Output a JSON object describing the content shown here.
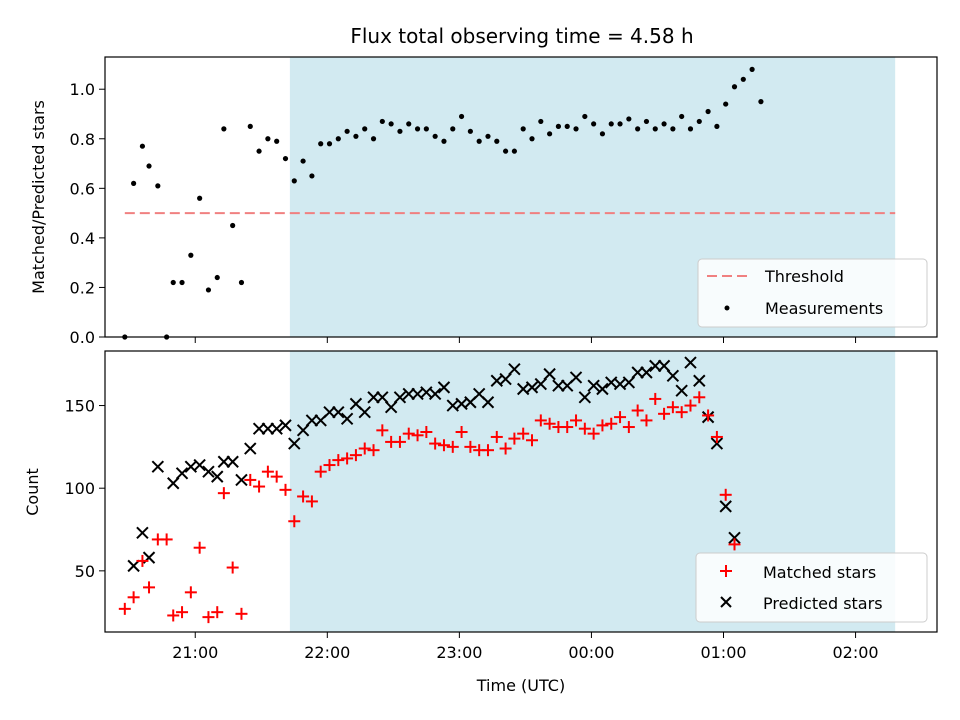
{
  "figure_title": "Flux total observing time = 4.58 h",
  "colors": {
    "observing_window": "#add8e6",
    "threshold": "#f08080",
    "measurements": "#000000",
    "matched": "#ff0000",
    "predicted": "#000000"
  },
  "chart_data": [
    {
      "type": "scatter",
      "title": "Flux total observing time = 4.58 h",
      "xlabel": "",
      "ylabel": "Matched/Predicted stars",
      "xlim": [
        "20:19",
        "02:37"
      ],
      "ylim": [
        0,
        1.13
      ],
      "yticks": [
        "0.0",
        "0.2",
        "0.4",
        "0.6",
        "0.8",
        "1.0"
      ],
      "shaded_window": [
        "21:43",
        "02:18"
      ],
      "legend_position": "lower-right",
      "threshold": {
        "name": "Threshold",
        "y": 0.5,
        "x_range": [
          "20:28",
          "02:18"
        ],
        "style": "dashed"
      },
      "series": [
        {
          "name": "Measurements",
          "marker": "dot",
          "points": [
            [
              "20:28",
              0.0
            ],
            [
              "20:32",
              0.62
            ],
            [
              "20:36",
              0.77
            ],
            [
              "20:39",
              0.69
            ],
            [
              "20:43",
              0.61
            ],
            [
              "20:47",
              0.0
            ],
            [
              "20:50",
              0.22
            ],
            [
              "20:54",
              0.22
            ],
            [
              "20:58",
              0.33
            ],
            [
              "21:02",
              0.56
            ],
            [
              "21:06",
              0.19
            ],
            [
              "21:10",
              0.24
            ],
            [
              "21:13",
              0.84
            ],
            [
              "21:17",
              0.45
            ],
            [
              "21:21",
              0.22
            ],
            [
              "21:25",
              0.85
            ],
            [
              "21:29",
              0.75
            ],
            [
              "21:33",
              0.8
            ],
            [
              "21:37",
              0.79
            ],
            [
              "21:41",
              0.72
            ],
            [
              "21:45",
              0.63
            ],
            [
              "21:49",
              0.71
            ],
            [
              "21:53",
              0.65
            ],
            [
              "21:57",
              0.78
            ],
            [
              "22:01",
              0.78
            ],
            [
              "22:05",
              0.8
            ],
            [
              "22:09",
              0.83
            ],
            [
              "22:13",
              0.81
            ],
            [
              "22:17",
              0.84
            ],
            [
              "22:21",
              0.8
            ],
            [
              "22:25",
              0.87
            ],
            [
              "22:29",
              0.86
            ],
            [
              "22:33",
              0.83
            ],
            [
              "22:37",
              0.86
            ],
            [
              "22:41",
              0.84
            ],
            [
              "22:45",
              0.84
            ],
            [
              "22:49",
              0.81
            ],
            [
              "22:53",
              0.79
            ],
            [
              "22:57",
              0.84
            ],
            [
              "23:01",
              0.89
            ],
            [
              "23:05",
              0.83
            ],
            [
              "23:09",
              0.79
            ],
            [
              "23:13",
              0.81
            ],
            [
              "23:17",
              0.79
            ],
            [
              "23:21",
              0.75
            ],
            [
              "23:25",
              0.75
            ],
            [
              "23:29",
              0.84
            ],
            [
              "23:33",
              0.8
            ],
            [
              "23:37",
              0.87
            ],
            [
              "23:41",
              0.82
            ],
            [
              "23:45",
              0.85
            ],
            [
              "23:49",
              0.85
            ],
            [
              "23:53",
              0.84
            ],
            [
              "23:57",
              0.89
            ],
            [
              "00:01",
              0.86
            ],
            [
              "00:05",
              0.82
            ],
            [
              "00:09",
              0.86
            ],
            [
              "00:13",
              0.86
            ],
            [
              "00:17",
              0.88
            ],
            [
              "00:21",
              0.84
            ],
            [
              "00:25",
              0.87
            ],
            [
              "00:29",
              0.84
            ],
            [
              "00:33",
              0.86
            ],
            [
              "00:37",
              0.84
            ],
            [
              "00:41",
              0.89
            ],
            [
              "00:45",
              0.84
            ],
            [
              "00:49",
              0.87
            ],
            [
              "00:53",
              0.91
            ],
            [
              "00:57",
              0.85
            ],
            [
              "01:01",
              0.94
            ],
            [
              "01:05",
              1.01
            ],
            [
              "01:09",
              1.04
            ],
            [
              "01:13",
              1.08
            ],
            [
              "01:17",
              0.95
            ]
          ]
        }
      ]
    },
    {
      "type": "scatter",
      "title": "",
      "xlabel": "Time (UTC)",
      "ylabel": "Count",
      "xlim": [
        "20:19",
        "02:37"
      ],
      "ylim": [
        13,
        183
      ],
      "yticks": [
        "50",
        "100",
        "150"
      ],
      "xticks": [
        "21:00",
        "22:00",
        "23:00",
        "00:00",
        "01:00",
        "02:00"
      ],
      "shaded_window": [
        "21:43",
        "02:18"
      ],
      "legend_position": "lower-right",
      "series": [
        {
          "name": "Matched stars",
          "marker": "plus",
          "points": [
            [
              "20:28",
              27
            ],
            [
              "20:32",
              34
            ],
            [
              "20:36",
              56
            ],
            [
              "20:39",
              40
            ],
            [
              "20:43",
              69
            ],
            [
              "20:47",
              69
            ],
            [
              "20:50",
              23
            ],
            [
              "20:54",
              25
            ],
            [
              "20:58",
              37
            ],
            [
              "21:02",
              64
            ],
            [
              "21:06",
              22
            ],
            [
              "21:10",
              25
            ],
            [
              "21:13",
              97
            ],
            [
              "21:17",
              52
            ],
            [
              "21:21",
              24
            ],
            [
              "21:25",
              105
            ],
            [
              "21:29",
              101
            ],
            [
              "21:33",
              110
            ],
            [
              "21:37",
              107
            ],
            [
              "21:41",
              99
            ],
            [
              "21:45",
              80
            ],
            [
              "21:49",
              95
            ],
            [
              "21:53",
              92
            ],
            [
              "21:57",
              110
            ],
            [
              "22:01",
              114
            ],
            [
              "22:05",
              117
            ],
            [
              "22:09",
              118
            ],
            [
              "22:13",
              120
            ],
            [
              "22:17",
              124
            ],
            [
              "22:21",
              123
            ],
            [
              "22:25",
              135
            ],
            [
              "22:29",
              128
            ],
            [
              "22:33",
              128
            ],
            [
              "22:37",
              133
            ],
            [
              "22:41",
              132
            ],
            [
              "22:45",
              134
            ],
            [
              "22:49",
              127
            ],
            [
              "22:53",
              126
            ],
            [
              "22:57",
              125
            ],
            [
              "23:01",
              134
            ],
            [
              "23:05",
              125
            ],
            [
              "23:09",
              123
            ],
            [
              "23:13",
              123
            ],
            [
              "23:17",
              131
            ],
            [
              "23:21",
              124
            ],
            [
              "23:25",
              130
            ],
            [
              "23:29",
              133
            ],
            [
              "23:33",
              129
            ],
            [
              "23:37",
              141
            ],
            [
              "23:41",
              139
            ],
            [
              "23:45",
              137
            ],
            [
              "23:49",
              137
            ],
            [
              "23:53",
              141
            ],
            [
              "23:57",
              136
            ],
            [
              "00:01",
              133
            ],
            [
              "00:05",
              138
            ],
            [
              "00:09",
              139
            ],
            [
              "00:13",
              143
            ],
            [
              "00:17",
              137
            ],
            [
              "00:21",
              147
            ],
            [
              "00:25",
              141
            ],
            [
              "00:29",
              154
            ],
            [
              "00:33",
              145
            ],
            [
              "00:37",
              149
            ],
            [
              "00:41",
              146
            ],
            [
              "00:45",
              150
            ],
            [
              "00:49",
              155
            ],
            [
              "00:53",
              144
            ],
            [
              "00:57",
              131
            ],
            [
              "01:01",
              96
            ],
            [
              "01:05",
              66
            ]
          ]
        },
        {
          "name": "Predicted stars",
          "marker": "x",
          "points": [
            [
              "20:32",
              53
            ],
            [
              "20:36",
              73
            ],
            [
              "20:39",
              58
            ],
            [
              "20:43",
              113
            ],
            [
              "20:50",
              103
            ],
            [
              "20:54",
              109
            ],
            [
              "20:58",
              113
            ],
            [
              "21:02",
              114
            ],
            [
              "21:06",
              110
            ],
            [
              "21:10",
              107
            ],
            [
              "21:13",
              116
            ],
            [
              "21:17",
              116
            ],
            [
              "21:21",
              105
            ],
            [
              "21:25",
              124
            ],
            [
              "21:29",
              136
            ],
            [
              "21:33",
              136
            ],
            [
              "21:37",
              136
            ],
            [
              "21:41",
              138
            ],
            [
              "21:45",
              127
            ],
            [
              "21:49",
              135
            ],
            [
              "21:53",
              141
            ],
            [
              "21:57",
              141
            ],
            [
              "22:01",
              146
            ],
            [
              "22:05",
              146
            ],
            [
              "22:09",
              142
            ],
            [
              "22:13",
              151
            ],
            [
              "22:17",
              146
            ],
            [
              "22:21",
              155
            ],
            [
              "22:25",
              155
            ],
            [
              "22:29",
              149
            ],
            [
              "22:33",
              155
            ],
            [
              "22:37",
              157
            ],
            [
              "22:41",
              157
            ],
            [
              "22:45",
              158
            ],
            [
              "22:49",
              157
            ],
            [
              "22:53",
              161
            ],
            [
              "22:57",
              150
            ],
            [
              "23:01",
              151
            ],
            [
              "23:05",
              152
            ],
            [
              "23:09",
              157
            ],
            [
              "23:13",
              152
            ],
            [
              "23:17",
              165
            ],
            [
              "23:21",
              166
            ],
            [
              "23:25",
              172
            ],
            [
              "23:29",
              160
            ],
            [
              "23:33",
              161
            ],
            [
              "23:37",
              163
            ],
            [
              "23:41",
              169
            ],
            [
              "23:45",
              162
            ],
            [
              "23:49",
              162
            ],
            [
              "23:53",
              167
            ],
            [
              "23:57",
              155
            ],
            [
              "00:01",
              162
            ],
            [
              "00:05",
              160
            ],
            [
              "00:09",
              164
            ],
            [
              "00:13",
              163
            ],
            [
              "00:17",
              164
            ],
            [
              "00:21",
              170
            ],
            [
              "00:25",
              170
            ],
            [
              "00:29",
              174
            ],
            [
              "00:33",
              174
            ],
            [
              "00:37",
              168
            ],
            [
              "00:41",
              159
            ],
            [
              "00:45",
              176
            ],
            [
              "00:49",
              165
            ],
            [
              "00:53",
              143
            ],
            [
              "00:57",
              127
            ],
            [
              "01:01",
              89
            ],
            [
              "01:05",
              70
            ]
          ]
        }
      ]
    }
  ]
}
